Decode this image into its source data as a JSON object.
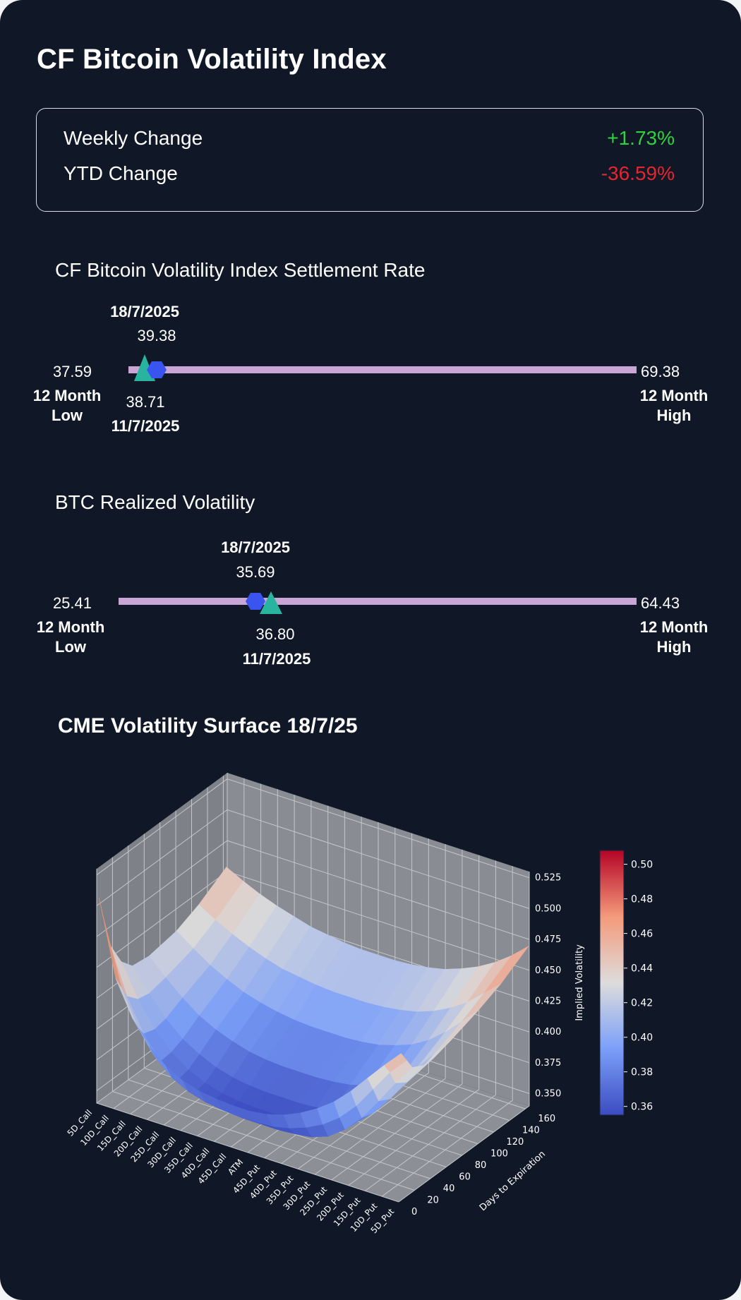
{
  "title": "CF Bitcoin Volatility Index",
  "summary": {
    "weekly_label": "Weekly Change",
    "weekly_value": "+1.73%",
    "weekly_color": "#2fd33a",
    "ytd_label": "YTD Change",
    "ytd_value": "-36.59%",
    "ytd_color": "#e5262c"
  },
  "bvx": {
    "title": "CF Bitcoin Volatility Index Settlement Rate",
    "low_value": "37.59",
    "low_label_line1": "12 Month",
    "low_label_line2": "Low",
    "high_value": "69.38",
    "high_label_line1": "12 Month",
    "high_label_line2": "High",
    "current_date": "18/7/2025",
    "current_value": "39.38",
    "prev_value": "38.71",
    "prev_date": "11/7/2025"
  },
  "rv": {
    "title": "BTC Realized Volatility",
    "low_value": "25.41",
    "low_label_line1": "12 Month",
    "low_label_line2": "Low",
    "high_value": "64.43",
    "high_label_line1": "12 Month",
    "high_label_line2": "High",
    "current_date": "18/7/2025",
    "current_value": "35.69",
    "prev_value": "36.80",
    "prev_date": "11/7/2025"
  },
  "colors": {
    "background": "#101828",
    "range_bar": "#c9a6d6",
    "current_marker": "#3a54f0",
    "previous_marker": "#29b4a0"
  },
  "chart_data": {
    "type": "surface",
    "title": "CME Volatility Surface 18/7/25",
    "x_categories": [
      "5D_Put",
      "10D_Put",
      "15D_Put",
      "20D_Put",
      "25D_Put",
      "30D_Put",
      "35D_Put",
      "40D_Put",
      "45D_Put",
      "ATM",
      "45D_Call",
      "40D_Call",
      "35D_Call",
      "30D_Call",
      "25D_Call",
      "20D_Call",
      "15D_Call",
      "10D_Call",
      "5D_Call"
    ],
    "ylabel": "Days to Expiration",
    "y_ticks": [
      0,
      20,
      40,
      60,
      80,
      100,
      120,
      140,
      160
    ],
    "ylim": [
      0,
      165
    ],
    "zlabel": "Implied Volatility",
    "z_ticks": [
      "0.350",
      "0.375",
      "0.400",
      "0.425",
      "0.450",
      "0.475",
      "0.500",
      "0.525"
    ],
    "zlim": [
      0.34,
      0.53
    ],
    "colorbar_ticks": [
      "0.36",
      "0.38",
      "0.40",
      "0.42",
      "0.44",
      "0.46",
      "0.48",
      "0.50"
    ],
    "colorbar_range": [
      0.355,
      0.508
    ],
    "days": [
      3,
      10,
      17,
      31,
      45,
      66,
      101,
      129,
      164
    ],
    "implied_vol": [
      [
        0.459,
        0.445,
        0.43,
        0.415,
        0.402,
        0.392,
        0.384,
        0.378,
        0.374,
        0.372,
        0.372,
        0.373,
        0.375,
        0.379,
        0.386,
        0.398,
        0.416,
        0.444,
        0.505
      ],
      [
        0.45,
        0.436,
        0.418,
        0.4,
        0.386,
        0.376,
        0.369,
        0.364,
        0.361,
        0.36,
        0.36,
        0.361,
        0.363,
        0.367,
        0.374,
        0.386,
        0.405,
        0.433,
        0.482
      ],
      [
        0.441,
        0.424,
        0.405,
        0.387,
        0.373,
        0.363,
        0.358,
        0.356,
        0.355,
        0.355,
        0.355,
        0.356,
        0.358,
        0.362,
        0.368,
        0.379,
        0.397,
        0.423,
        0.46
      ],
      [
        0.436,
        0.418,
        0.4,
        0.384,
        0.372,
        0.364,
        0.36,
        0.358,
        0.357,
        0.357,
        0.357,
        0.358,
        0.36,
        0.364,
        0.37,
        0.38,
        0.394,
        0.414,
        0.44
      ],
      [
        0.436,
        0.419,
        0.402,
        0.388,
        0.377,
        0.37,
        0.366,
        0.364,
        0.363,
        0.363,
        0.363,
        0.364,
        0.366,
        0.37,
        0.376,
        0.384,
        0.396,
        0.412,
        0.43
      ],
      [
        0.44,
        0.424,
        0.409,
        0.396,
        0.387,
        0.381,
        0.377,
        0.375,
        0.374,
        0.374,
        0.374,
        0.375,
        0.377,
        0.381,
        0.386,
        0.393,
        0.403,
        0.415,
        0.428
      ],
      [
        0.448,
        0.434,
        0.421,
        0.41,
        0.402,
        0.397,
        0.393,
        0.391,
        0.39,
        0.39,
        0.39,
        0.391,
        0.393,
        0.396,
        0.4,
        0.406,
        0.413,
        0.422,
        0.432
      ],
      [
        0.456,
        0.444,
        0.432,
        0.423,
        0.416,
        0.411,
        0.408,
        0.406,
        0.405,
        0.405,
        0.405,
        0.406,
        0.408,
        0.41,
        0.414,
        0.419,
        0.425,
        0.432,
        0.44
      ],
      [
        0.47,
        0.458,
        0.448,
        0.44,
        0.434,
        0.429,
        0.426,
        0.424,
        0.423,
        0.423,
        0.423,
        0.424,
        0.426,
        0.428,
        0.432,
        0.436,
        0.441,
        0.447,
        0.454
      ]
    ]
  }
}
